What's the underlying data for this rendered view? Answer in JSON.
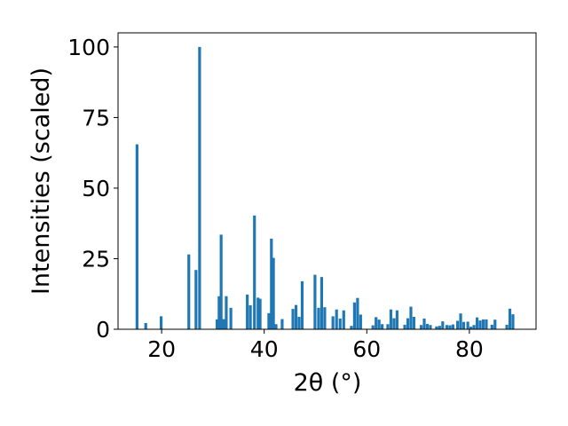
{
  "chart_data": {
    "type": "bar",
    "title": "",
    "xlabel": "2θ (°)",
    "ylabel": "Intensities (scaled)",
    "xlim": [
      11.5,
      93
    ],
    "ylim": [
      0,
      105
    ],
    "xticks": [
      20,
      40,
      60,
      80
    ],
    "yticks": [
      0,
      25,
      50,
      75,
      100
    ],
    "grid": false,
    "color": "#1f77b4",
    "bar_width_deg": 0.55,
    "x": [
      15.2,
      16.9,
      19.9,
      25.3,
      26.7,
      27.4,
      30.8,
      31.2,
      31.6,
      32.1,
      32.6,
      33.5,
      36.7,
      37.3,
      38.1,
      38.8,
      39.2,
      40.9,
      41.4,
      41.8,
      42.3,
      43.5,
      45.6,
      46.2,
      46.8,
      47.4,
      49.9,
      50.6,
      51.2,
      51.8,
      53.4,
      54.1,
      54.8,
      55.5,
      57.0,
      57.6,
      58.2,
      58.8,
      61.2,
      61.8,
      62.4,
      63.0,
      64.1,
      64.7,
      65.3,
      65.9,
      67.4,
      68.0,
      68.6,
      69.2,
      70.6,
      71.2,
      71.8,
      72.4,
      73.6,
      74.2,
      74.8,
      75.6,
      76.2,
      76.8,
      77.7,
      78.3,
      78.9,
      79.7,
      80.3,
      80.9,
      81.5,
      82.1,
      82.7,
      83.3,
      84.4,
      85.0,
      87.3,
      87.9,
      88.5
    ],
    "values": [
      65.5,
      2.2,
      4.6,
      26.5,
      21.0,
      100.0,
      3.5,
      11.7,
      33.5,
      3.6,
      11.7,
      7.6,
      12.3,
      8.5,
      40.3,
      11.2,
      10.8,
      5.7,
      32.1,
      25.3,
      1.8,
      3.6,
      7.2,
      8.6,
      4.4,
      17.0,
      19.3,
      7.6,
      18.5,
      7.8,
      4.6,
      7.0,
      3.8,
      6.7,
      1.2,
      9.5,
      11.1,
      5.2,
      1.4,
      4.3,
      3.4,
      1.8,
      1.8,
      7.0,
      3.9,
      6.7,
      1.6,
      3.9,
      8.0,
      4.4,
      1.5,
      3.8,
      1.9,
      1.5,
      1.0,
      1.2,
      2.8,
      1.5,
      1.4,
      1.7,
      3.0,
      5.6,
      2.6,
      2.7,
      0.9,
      1.5,
      4.2,
      3.1,
      3.5,
      3.5,
      1.6,
      3.4,
      1.6,
      7.3,
      5.3
    ]
  }
}
